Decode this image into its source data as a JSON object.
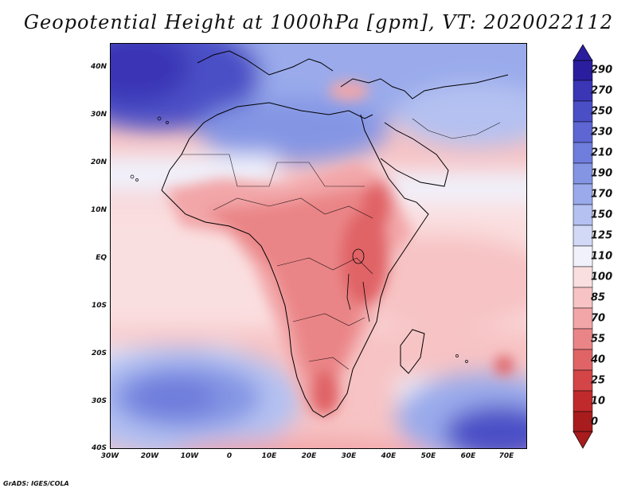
{
  "title": "Geopotential Height at 1000hPa [gpm], VT: 2020022112",
  "credit": "GrADS: IGES/COLA",
  "map": {
    "variable": "Geopotential Height at 1000hPa",
    "units": "gpm",
    "valid_time": "2020022112",
    "lat_labels": [
      "40N",
      "30N",
      "20N",
      "10N",
      "EQ",
      "10S",
      "20S",
      "30S",
      "40S"
    ],
    "lon_labels": [
      "30W",
      "20W",
      "10W",
      "0",
      "10E",
      "20E",
      "30E",
      "40E",
      "50E",
      "60E",
      "70E"
    ]
  },
  "colorbar": {
    "labels": [
      "290",
      "270",
      "250",
      "230",
      "210",
      "190",
      "170",
      "150",
      "125",
      "110",
      "100",
      "85",
      "70",
      "55",
      "40",
      "25",
      "10",
      "0"
    ],
    "colors": [
      "#2b1e9e",
      "#3a36b5",
      "#4b4fc6",
      "#5d66d2",
      "#6f7ddc",
      "#8495e4",
      "#9aaaeb",
      "#b4c1f1",
      "#d1d9f7",
      "#f0f1fb",
      "#fadfe0",
      "#f7c3c4",
      "#f2a6a8",
      "#ea8587",
      "#e06466",
      "#d44547",
      "#c12a2c",
      "#a81c1e"
    ]
  }
}
